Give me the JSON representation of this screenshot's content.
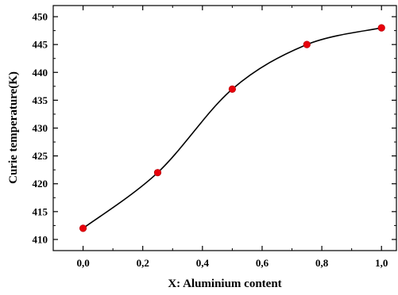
{
  "chart_data": {
    "type": "line",
    "xlabel": "X: Aluminium content",
    "ylabel": "Curie temperature(K)",
    "xlim": [
      -0.1,
      1.05
    ],
    "ylim": [
      408,
      452
    ],
    "x_ticks": [
      0.0,
      0.2,
      0.4,
      0.6,
      0.8,
      1.0
    ],
    "x_tick_labels": [
      "0,0",
      "0,2",
      "0,4",
      "0,6",
      "0,8",
      "1,0"
    ],
    "y_ticks": [
      410,
      415,
      420,
      425,
      430,
      435,
      440,
      445,
      450
    ],
    "y_tick_labels": [
      "410",
      "415",
      "420",
      "425",
      "430",
      "435",
      "440",
      "445",
      "450"
    ],
    "grid": false,
    "series": [
      {
        "x": [
          0.0,
          0.25,
          0.5,
          0.75,
          1.0
        ],
        "y": [
          412,
          422,
          437,
          445,
          448
        ],
        "line_color": "#000000",
        "marker_color": "#e8000b",
        "marker": "circle",
        "curve": "smooth"
      }
    ]
  }
}
